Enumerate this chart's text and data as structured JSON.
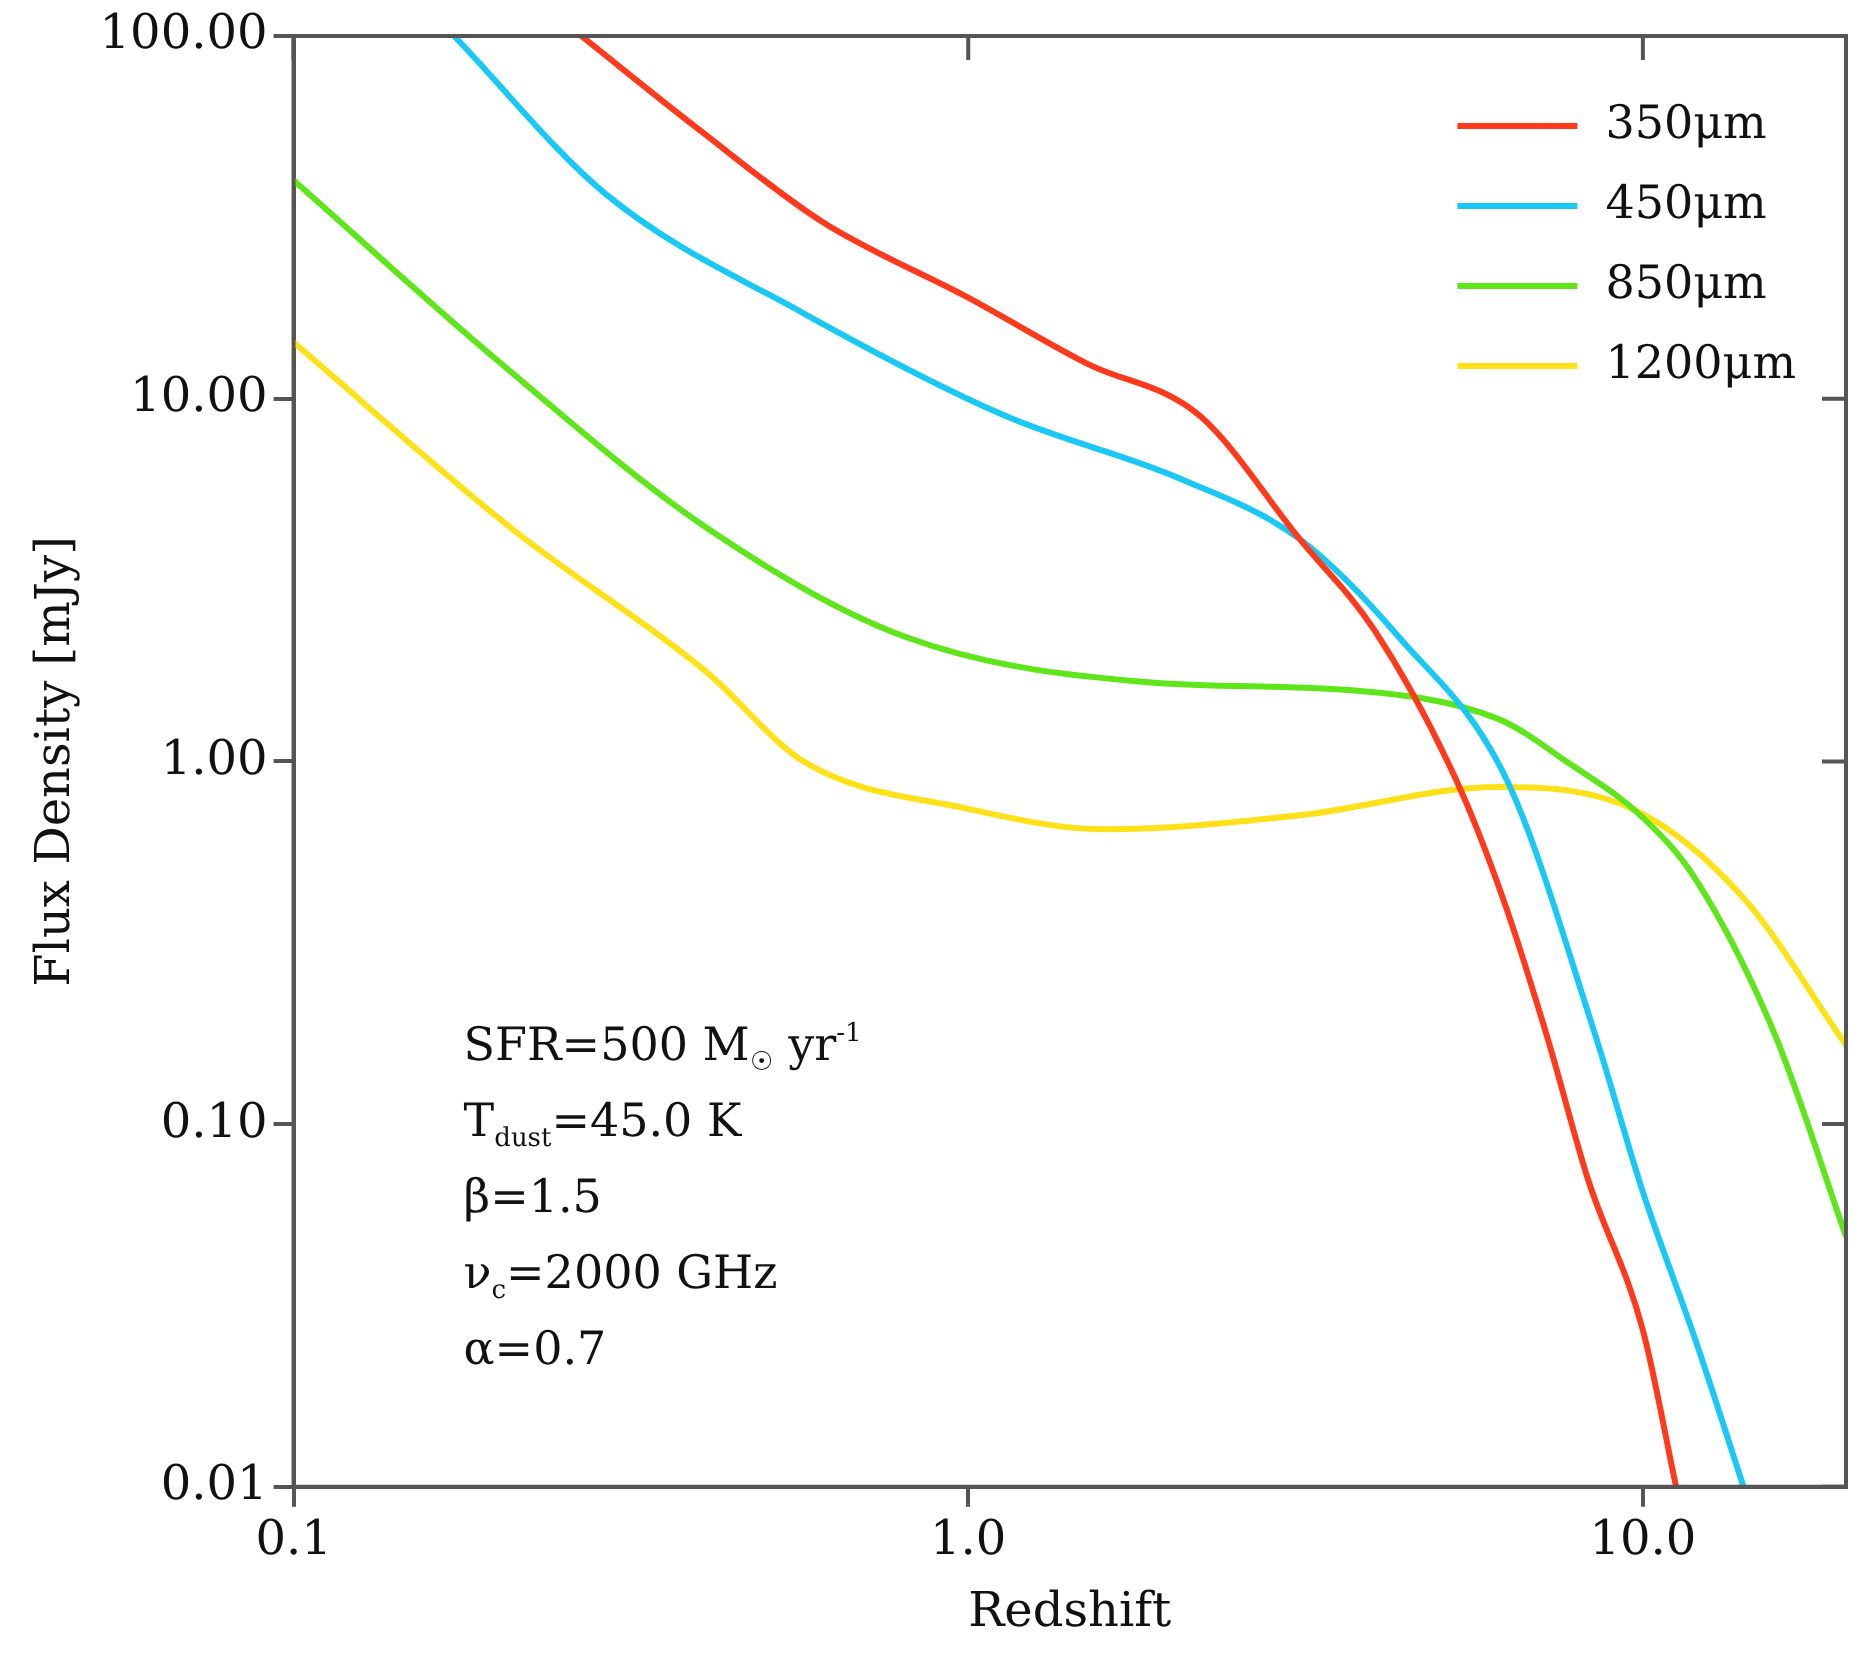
{
  "chart_data": {
    "type": "line",
    "xlabel": "Redshift",
    "ylabel": "Flux Density [mJy]",
    "log": "xy",
    "xlim": [
      0.1,
      20
    ],
    "ylim": [
      0.01,
      100
    ],
    "xticks": [
      0.1,
      {
        "value": 1,
        "label": "1.0"
      },
      {
        "value": 10,
        "label": "10.0"
      }
    ],
    "yticks": [
      0.01,
      {
        "value": 0.1,
        "label": "0.10"
      },
      {
        "value": 1,
        "label": "1.00"
      },
      {
        "value": 10,
        "label": "10.00"
      },
      {
        "value": 100,
        "label": "100.00"
      }
    ],
    "legend": "top right",
    "marker": "none",
    "line_style": "solid",
    "series": [
      {
        "name": "350μm",
        "color": "#ff3a1c",
        "x": [
          0.267,
          0.4,
          0.61,
          1.0,
          1.5,
          2.2,
          3.1,
          4.0,
          5.3,
          6.2,
          7.2,
          8.3,
          10.0,
          11.2
        ],
        "values": [
          100,
          55,
          30.6,
          19,
          12.5,
          9,
          4.1,
          2.3,
          0.88,
          0.42,
          0.176,
          0.07,
          0.027,
          0.01
        ]
      },
      {
        "name": "450μm",
        "color": "#19c8f5",
        "x": [
          0.173,
          0.29,
          0.57,
          1.13,
          2.07,
          3.1,
          4.35,
          6.3,
          8.5,
          10.0,
          12.0,
          14.1
        ],
        "values": [
          100,
          36.7,
          17.2,
          9,
          6,
          4.1,
          2.2,
          0.88,
          0.176,
          0.065,
          0.025,
          0.01
        ]
      },
      {
        "name": "850μm",
        "color": "#5ee61a",
        "x": [
          0.1,
          0.2,
          0.41,
          0.81,
          1.87,
          3.7,
          6.1,
          7.7,
          10.0,
          12.0,
          15.7,
          20
        ],
        "values": [
          40,
          12.8,
          4.4,
          2.2,
          1.65,
          1.57,
          1.31,
          1.0,
          0.7,
          0.47,
          0.176,
          0.049
        ]
      },
      {
        "name": "1200μm",
        "color": "#ffe11a",
        "x": [
          0.1,
          0.21,
          0.41,
          0.57,
          1.0,
          1.59,
          3.1,
          6.1,
          9.8,
          14.1,
          20
        ],
        "values": [
          14.3,
          4.4,
          1.76,
          1.0,
          0.74,
          0.65,
          0.71,
          0.85,
          0.73,
          0.42,
          0.165
        ]
      }
    ],
    "annotations": [
      "SFR=500 M$_{☉}$ yr$^{-1}$",
      "T$_{dust}$=45.0 K",
      "β=1.5",
      "ν$_{c}$=2000 GHz",
      "α=0.7"
    ]
  }
}
